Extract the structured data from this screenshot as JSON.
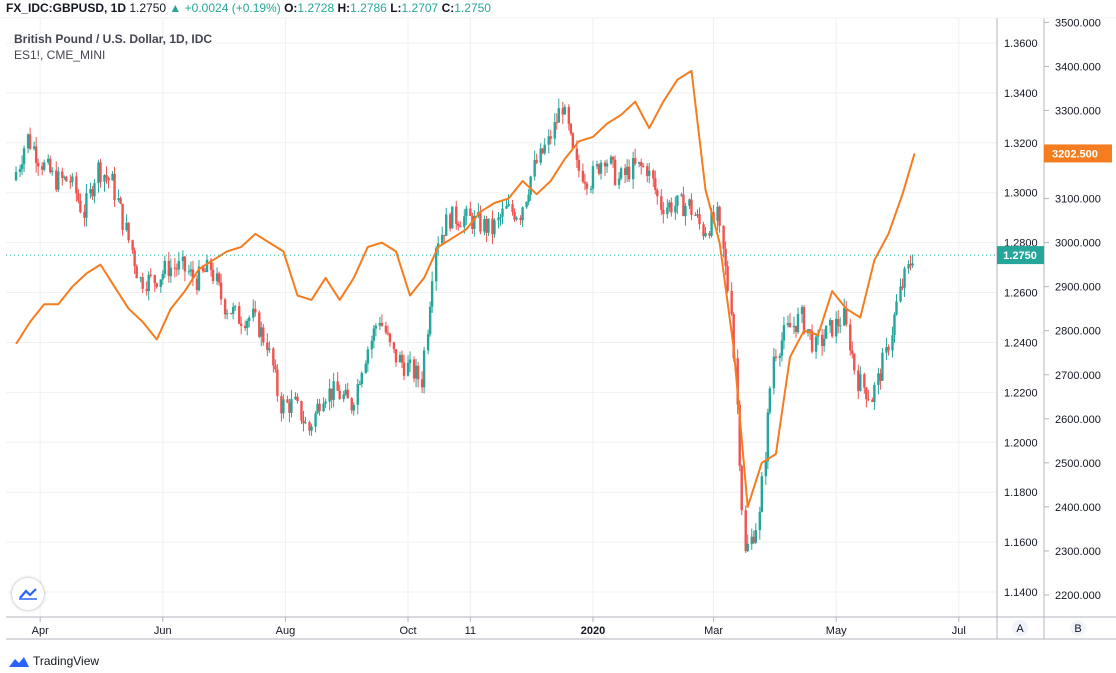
{
  "header": {
    "symbol": "FX_IDC:GBPUSD, 1D",
    "last": "1.2750",
    "change": "+0.0024 (+0.19%)",
    "o_label": "O:",
    "o": "1.2728",
    "h_label": "H:",
    "h": "1.2786",
    "l_label": "L:",
    "l": "1.2707",
    "c_label": "C:",
    "c": "1.2750"
  },
  "legend": {
    "main": "British Pound / U.S. Dollar, 1D, IDC",
    "overlay": "ES1!, CME_MINI"
  },
  "footer": {
    "brand": "TradingView"
  },
  "colors": {
    "up": "#26a69a",
    "down": "#ef5350",
    "overlay": "#f57c1f",
    "grid": "#eef0f3",
    "axis_border": "#b2b5be"
  },
  "chart_data": {
    "type": "candlestick",
    "x_ticks": [
      "Apr",
      "Jun",
      "Aug",
      "Oct",
      "11",
      "2020",
      "Mar",
      "May",
      "Jul"
    ],
    "y_left_ticks": [
      "1.3600",
      "1.3400",
      "1.3200",
      "1.3000",
      "1.2800",
      "1.2600",
      "1.2400",
      "1.2200",
      "1.2000",
      "1.1800",
      "1.1600",
      "1.1400"
    ],
    "y_right_ticks": [
      "3500.000",
      "3400.000",
      "3300.000",
      "3200.000",
      "3100.000",
      "3000.000",
      "2900.000",
      "2800.000",
      "2700.000",
      "2600.000",
      "2500.000",
      "2400.000",
      "2300.000",
      "2200.000"
    ],
    "y_left_range": [
      1.13,
      1.37
    ],
    "y_right_range": [
      2150,
      3510
    ],
    "axis_buttons": [
      "A",
      "B"
    ],
    "series": [
      {
        "name": "British Pound / U.S. Dollar, 1D, IDC",
        "kind": "candles",
        "last_label": "1.2750",
        "points": [
          {
            "date": "2019-03-20",
            "close": 1.305
          },
          {
            "date": "2019-03-27",
            "close": 1.322
          },
          {
            "date": "2019-04-03",
            "close": 1.312
          },
          {
            "date": "2019-04-10",
            "close": 1.305
          },
          {
            "date": "2019-04-17",
            "close": 1.305
          },
          {
            "date": "2019-04-24",
            "close": 1.292
          },
          {
            "date": "2019-05-01",
            "close": 1.31
          },
          {
            "date": "2019-05-08",
            "close": 1.304
          },
          {
            "date": "2019-05-15",
            "close": 1.285
          },
          {
            "date": "2019-05-22",
            "close": 1.265
          },
          {
            "date": "2019-05-29",
            "close": 1.265
          },
          {
            "date": "2019-06-05",
            "close": 1.27
          },
          {
            "date": "2019-06-12",
            "close": 1.27
          },
          {
            "date": "2019-06-19",
            "close": 1.265
          },
          {
            "date": "2019-06-26",
            "close": 1.27
          },
          {
            "date": "2019-07-03",
            "close": 1.255
          },
          {
            "date": "2019-07-10",
            "close": 1.25
          },
          {
            "date": "2019-07-17",
            "close": 1.25
          },
          {
            "date": "2019-07-24",
            "close": 1.24
          },
          {
            "date": "2019-07-31",
            "close": 1.215
          },
          {
            "date": "2019-08-07",
            "close": 1.215
          },
          {
            "date": "2019-08-14",
            "close": 1.205
          },
          {
            "date": "2019-08-21",
            "close": 1.22
          },
          {
            "date": "2019-08-28",
            "close": 1.22
          },
          {
            "date": "2019-09-04",
            "close": 1.215
          },
          {
            "date": "2019-09-11",
            "close": 1.235
          },
          {
            "date": "2019-09-18",
            "close": 1.25
          },
          {
            "date": "2019-09-25",
            "close": 1.235
          },
          {
            "date": "2019-10-02",
            "close": 1.23
          },
          {
            "date": "2019-10-09",
            "close": 1.225
          },
          {
            "date": "2019-10-16",
            "close": 1.28
          },
          {
            "date": "2019-10-23",
            "close": 1.29
          },
          {
            "date": "2019-10-30",
            "close": 1.29
          },
          {
            "date": "2019-11-06",
            "close": 1.288
          },
          {
            "date": "2019-11-13",
            "close": 1.285
          },
          {
            "date": "2019-11-20",
            "close": 1.293
          },
          {
            "date": "2019-11-27",
            "close": 1.292
          },
          {
            "date": "2019-12-04",
            "close": 1.31
          },
          {
            "date": "2019-12-11",
            "close": 1.32
          },
          {
            "date": "2019-12-18",
            "close": 1.335
          },
          {
            "date": "2019-12-25",
            "close": 1.31
          },
          {
            "date": "2020-01-01",
            "close": 1.305
          },
          {
            "date": "2020-01-08",
            "close": 1.315
          },
          {
            "date": "2020-01-15",
            "close": 1.305
          },
          {
            "date": "2020-01-22",
            "close": 1.31
          },
          {
            "date": "2020-01-29",
            "close": 1.31
          },
          {
            "date": "2020-02-05",
            "close": 1.295
          },
          {
            "date": "2020-02-12",
            "close": 1.295
          },
          {
            "date": "2020-02-19",
            "close": 1.295
          },
          {
            "date": "2020-02-26",
            "close": 1.285
          },
          {
            "date": "2020-03-04",
            "close": 1.29
          },
          {
            "date": "2020-03-11",
            "close": 1.255
          },
          {
            "date": "2020-03-18",
            "close": 1.155
          },
          {
            "date": "2020-03-25",
            "close": 1.17
          },
          {
            "date": "2020-04-01",
            "close": 1.235
          },
          {
            "date": "2020-04-08",
            "close": 1.245
          },
          {
            "date": "2020-04-15",
            "close": 1.25
          },
          {
            "date": "2020-04-22",
            "close": 1.238
          },
          {
            "date": "2020-04-29",
            "close": 1.245
          },
          {
            "date": "2020-05-06",
            "close": 1.25
          },
          {
            "date": "2020-05-13",
            "close": 1.225
          },
          {
            "date": "2020-05-20",
            "close": 1.218
          },
          {
            "date": "2020-05-27",
            "close": 1.235
          },
          {
            "date": "2020-06-03",
            "close": 1.26
          },
          {
            "date": "2020-06-09",
            "close": 1.275
          }
        ]
      },
      {
        "name": "ES1!, CME_MINI",
        "kind": "line",
        "last_label": "3202.500",
        "points": [
          {
            "date": "2019-03-20",
            "value": 2770
          },
          {
            "date": "2019-03-27",
            "value": 2820
          },
          {
            "date": "2019-04-03",
            "value": 2860
          },
          {
            "date": "2019-04-10",
            "value": 2860
          },
          {
            "date": "2019-04-17",
            "value": 2900
          },
          {
            "date": "2019-04-24",
            "value": 2930
          },
          {
            "date": "2019-05-01",
            "value": 2950
          },
          {
            "date": "2019-05-08",
            "value": 2900
          },
          {
            "date": "2019-05-15",
            "value": 2850
          },
          {
            "date": "2019-05-22",
            "value": 2820
          },
          {
            "date": "2019-05-29",
            "value": 2780
          },
          {
            "date": "2019-06-05",
            "value": 2850
          },
          {
            "date": "2019-06-12",
            "value": 2890
          },
          {
            "date": "2019-06-19",
            "value": 2940
          },
          {
            "date": "2019-06-26",
            "value": 2960
          },
          {
            "date": "2019-07-03",
            "value": 2980
          },
          {
            "date": "2019-07-10",
            "value": 2990
          },
          {
            "date": "2019-07-17",
            "value": 3020
          },
          {
            "date": "2019-07-24",
            "value": 3000
          },
          {
            "date": "2019-07-31",
            "value": 2980
          },
          {
            "date": "2019-08-07",
            "value": 2880
          },
          {
            "date": "2019-08-14",
            "value": 2870
          },
          {
            "date": "2019-08-21",
            "value": 2920
          },
          {
            "date": "2019-08-28",
            "value": 2870
          },
          {
            "date": "2019-09-04",
            "value": 2920
          },
          {
            "date": "2019-09-11",
            "value": 2990
          },
          {
            "date": "2019-09-18",
            "value": 3000
          },
          {
            "date": "2019-09-25",
            "value": 2980
          },
          {
            "date": "2019-10-02",
            "value": 2880
          },
          {
            "date": "2019-10-09",
            "value": 2920
          },
          {
            "date": "2019-10-16",
            "value": 2990
          },
          {
            "date": "2019-10-23",
            "value": 3010
          },
          {
            "date": "2019-10-30",
            "value": 3030
          },
          {
            "date": "2019-11-06",
            "value": 3070
          },
          {
            "date": "2019-11-13",
            "value": 3090
          },
          {
            "date": "2019-11-20",
            "value": 3100
          },
          {
            "date": "2019-11-27",
            "value": 3140
          },
          {
            "date": "2019-12-04",
            "value": 3110
          },
          {
            "date": "2019-12-11",
            "value": 3140
          },
          {
            "date": "2019-12-18",
            "value": 3190
          },
          {
            "date": "2019-12-25",
            "value": 3230
          },
          {
            "date": "2020-01-01",
            "value": 3240
          },
          {
            "date": "2020-01-08",
            "value": 3270
          },
          {
            "date": "2020-01-15",
            "value": 3290
          },
          {
            "date": "2020-01-22",
            "value": 3320
          },
          {
            "date": "2020-01-29",
            "value": 3260
          },
          {
            "date": "2020-02-05",
            "value": 3320
          },
          {
            "date": "2020-02-12",
            "value": 3370
          },
          {
            "date": "2020-02-19",
            "value": 3390
          },
          {
            "date": "2020-02-26",
            "value": 3120
          },
          {
            "date": "2020-03-04",
            "value": 3000
          },
          {
            "date": "2020-03-11",
            "value": 2760
          },
          {
            "date": "2020-03-18",
            "value": 2400
          },
          {
            "date": "2020-03-25",
            "value": 2500
          },
          {
            "date": "2020-04-01",
            "value": 2520
          },
          {
            "date": "2020-04-08",
            "value": 2740
          },
          {
            "date": "2020-04-15",
            "value": 2800
          },
          {
            "date": "2020-04-22",
            "value": 2790
          },
          {
            "date": "2020-04-29",
            "value": 2890
          },
          {
            "date": "2020-05-06",
            "value": 2850
          },
          {
            "date": "2020-05-13",
            "value": 2830
          },
          {
            "date": "2020-05-20",
            "value": 2960
          },
          {
            "date": "2020-05-27",
            "value": 3020
          },
          {
            "date": "2020-06-03",
            "value": 3110
          },
          {
            "date": "2020-06-09",
            "value": 3202.5
          }
        ]
      }
    ]
  }
}
